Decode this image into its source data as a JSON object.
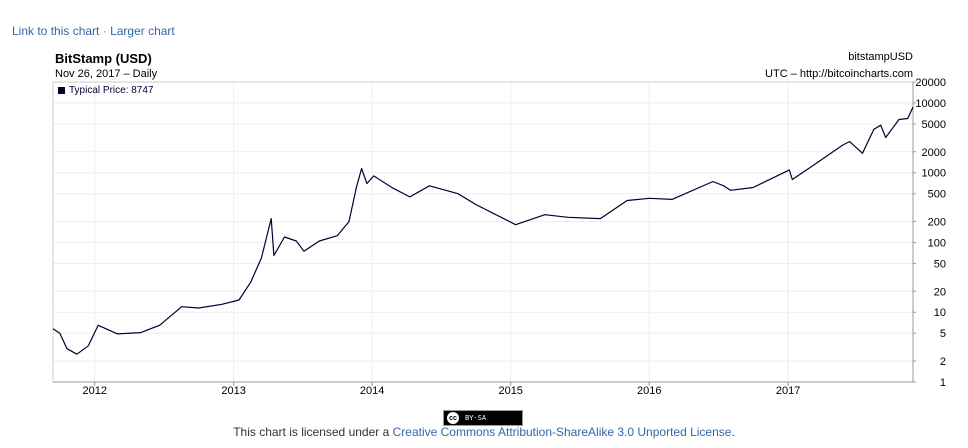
{
  "links": {
    "link_label": "Link to this chart",
    "separator": "·",
    "larger_label": "Larger chart"
  },
  "header": {
    "title": "BitStamp (USD)",
    "subtitle": "Nov 26, 2017 – Daily",
    "symbol": "bitstampUSD",
    "source": "UTC – http://bitcoincharts.com"
  },
  "legend": {
    "label": "Typical Price: 8747",
    "color": "#000033"
  },
  "footer": {
    "badge_cc": "cc",
    "badge_text": "BY-SA",
    "license_prefix": "This chart is licensed under a",
    "license_link": "Creative Commons Attribution-ShareAlike 3.0 Unported License",
    "license_suffix": "."
  },
  "chart_data": {
    "type": "line",
    "title": "BitStamp (USD)",
    "xlabel": "",
    "ylabel": "",
    "yscale": "log",
    "ylim": [
      1,
      20000
    ],
    "xlim": [
      "2011-09-13",
      "2017-11-26"
    ],
    "grid": true,
    "legend_position": "top-left",
    "x_ticks": [
      "2012",
      "2013",
      "2014",
      "2015",
      "2016",
      "2017"
    ],
    "y_ticks": [
      "1",
      "2",
      "5",
      "10",
      "20",
      "50",
      "100",
      "200",
      "500",
      "1000",
      "2000",
      "5000",
      "10000",
      "20000"
    ],
    "series": [
      {
        "name": "Typical Price",
        "color": "#000033",
        "x": [
          "2011-09-13",
          "2011-10-01",
          "2011-10-20",
          "2011-11-15",
          "2011-12-15",
          "2012-01-10",
          "2012-03-01",
          "2012-05-01",
          "2012-06-20",
          "2012-08-17",
          "2012-10-01",
          "2012-12-01",
          "2013-01-15",
          "2013-02-15",
          "2013-03-15",
          "2013-04-10",
          "2013-04-17",
          "2013-05-15",
          "2013-06-15",
          "2013-07-05",
          "2013-08-15",
          "2013-10-01",
          "2013-11-01",
          "2013-11-20",
          "2013-12-04",
          "2013-12-18",
          "2014-01-05",
          "2014-02-25",
          "2014-04-10",
          "2014-06-01",
          "2014-08-15",
          "2014-10-01",
          "2015-01-14",
          "2015-04-01",
          "2015-06-01",
          "2015-08-25",
          "2015-11-04",
          "2016-01-01",
          "2016-03-01",
          "2016-06-17",
          "2016-07-15",
          "2016-08-02",
          "2016-10-01",
          "2017-01-04",
          "2017-01-12",
          "2017-03-01",
          "2017-05-25",
          "2017-06-12",
          "2017-07-16",
          "2017-08-15",
          "2017-09-02",
          "2017-09-15",
          "2017-10-20",
          "2017-11-12",
          "2017-11-26"
        ],
        "values": [
          5.8,
          5.0,
          3.0,
          2.5,
          3.3,
          6.5,
          4.9,
          5.1,
          6.5,
          12.0,
          11.5,
          13.0,
          15.0,
          27.0,
          60.0,
          220.0,
          65.0,
          120.0,
          105.0,
          75.0,
          105.0,
          125.0,
          200.0,
          600.0,
          1150.0,
          700.0,
          900.0,
          600.0,
          450.0,
          650.0,
          500.0,
          350.0,
          180.0,
          250.0,
          230.0,
          220.0,
          400.0,
          430.0,
          415.0,
          750.0,
          650.0,
          560.0,
          615.0,
          1100.0,
          800.0,
          1200.0,
          2500.0,
          2800.0,
          1900.0,
          4200.0,
          4800.0,
          3200.0,
          5800.0,
          6000.0,
          8747.0
        ]
      }
    ]
  }
}
